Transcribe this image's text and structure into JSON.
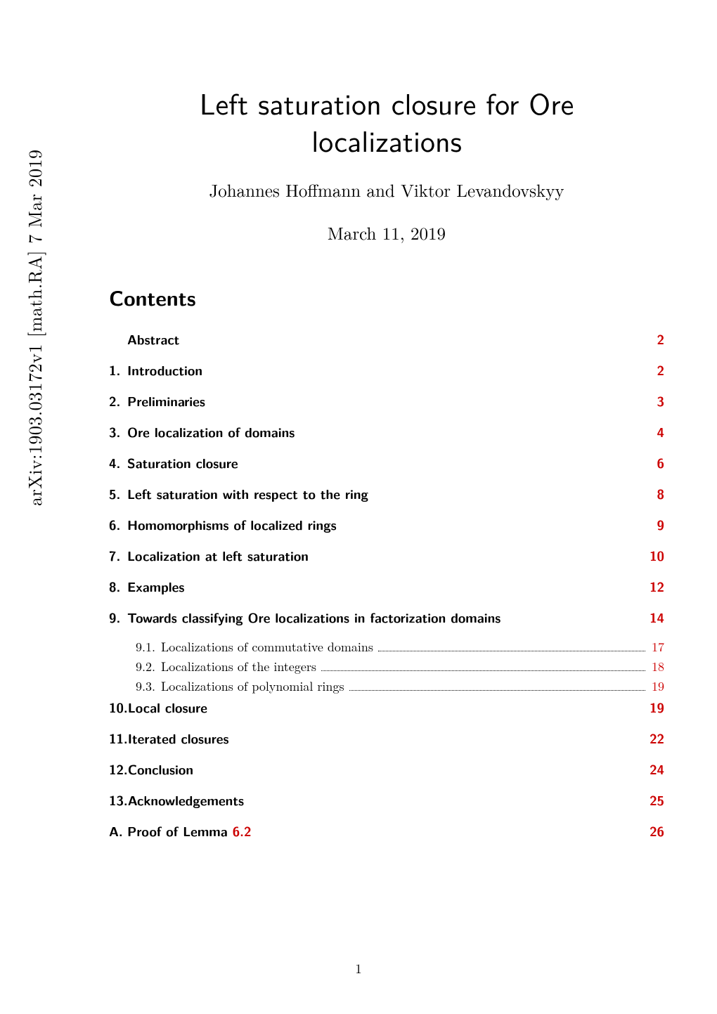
{
  "arxiv_id": "arXiv:1903.03172v1  [math.RA]  7 Mar 2019",
  "title_line1": "Left saturation closure for Ore",
  "title_line2": "localizations",
  "authors": "Johannes Hoffmann and Viktor Levandovskyy",
  "date": "March 11, 2019",
  "contents_heading": "Contents",
  "page_number": "1",
  "colors": {
    "link_red": "#cc0000",
    "text_black": "#000000",
    "background": "#ffffff"
  },
  "typography": {
    "title_fontsize": 42,
    "author_fontsize": 25,
    "date_fontsize": 25,
    "contents_heading_fontsize": 30,
    "toc_main_fontsize": 19,
    "toc_sub_fontsize": 18,
    "pagenum_fontsize": 19,
    "title_family": "sans-serif",
    "body_family": "serif"
  },
  "toc": [
    {
      "type": "main",
      "num": "",
      "label": "Abstract",
      "page": "2"
    },
    {
      "type": "main",
      "num": "1.",
      "label": "Introduction",
      "page": "2"
    },
    {
      "type": "main",
      "num": "2.",
      "label": "Preliminaries",
      "page": "3"
    },
    {
      "type": "main",
      "num": "3.",
      "label": "Ore localization of domains",
      "page": "4"
    },
    {
      "type": "main",
      "num": "4.",
      "label": "Saturation closure",
      "page": "6"
    },
    {
      "type": "main",
      "num": "5.",
      "label": "Left saturation with respect to the ring",
      "page": "8"
    },
    {
      "type": "main",
      "num": "6.",
      "label": "Homomorphisms of localized rings",
      "page": "9"
    },
    {
      "type": "main",
      "num": "7.",
      "label": "Localization at left saturation",
      "page": "10"
    },
    {
      "type": "main",
      "num": "8.",
      "label": "Examples",
      "page": "12"
    },
    {
      "type": "main",
      "num": "9.",
      "label": "Towards classifying Ore localizations in factorization domains",
      "page": "14"
    },
    {
      "type": "sub",
      "num": "9.1.",
      "label": "Localizations of commutative domains",
      "page": "17"
    },
    {
      "type": "sub",
      "num": "9.2.",
      "label": "Localizations of the integers",
      "page": "18"
    },
    {
      "type": "sub",
      "num": "9.3.",
      "label": "Localizations of polynomial rings",
      "page": "19"
    },
    {
      "type": "main",
      "num": "10.",
      "label": "Local closure",
      "page": "19"
    },
    {
      "type": "main",
      "num": "11.",
      "label": "Iterated closures",
      "page": "22"
    },
    {
      "type": "main",
      "num": "12.",
      "label": "Conclusion",
      "page": "24"
    },
    {
      "type": "main",
      "num": "13.",
      "label": "Acknowledgements",
      "page": "25"
    },
    {
      "type": "main",
      "num": "A.",
      "label_prefix": "Proof of Lemma ",
      "label_ref": "6.2",
      "page": "26"
    }
  ]
}
